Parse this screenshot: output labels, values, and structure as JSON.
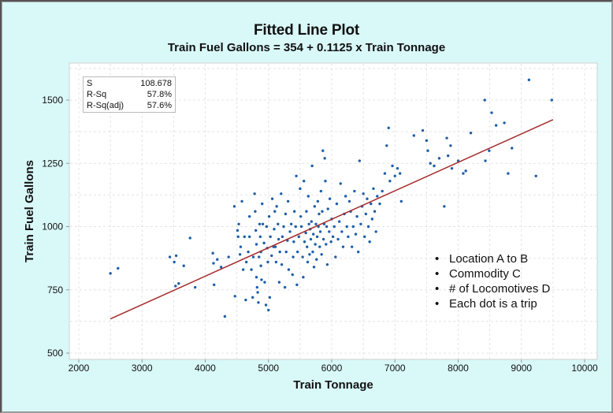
{
  "chart_data": {
    "type": "scatter",
    "title": "Fitted Line Plot",
    "subtitle": "Train Fuel Gallons = 354 + 0.1125 x Train Tonnage",
    "xlabel": "Train Tonnage",
    "ylabel": "Train Fuel Gallons",
    "xlim": [
      2000,
      10000
    ],
    "ylim": [
      500,
      1600
    ],
    "xticks": [
      2000,
      3000,
      4000,
      5000,
      6000,
      7000,
      8000,
      9000,
      10000
    ],
    "yticks": [
      500,
      750,
      1000,
      1250,
      1500
    ],
    "xtick_labels": [
      "2000",
      "3000",
      "4000",
      "5000",
      "6000",
      "7000",
      "8000",
      "9000",
      "10000"
    ],
    "ytick_labels": [
      "500",
      "750",
      "1000",
      "1250",
      "1500"
    ],
    "grid": true,
    "fit_line": {
      "intercept": 354,
      "slope": 0.1125,
      "x_range": [
        2500,
        9500
      ],
      "color": "#a52a2a"
    },
    "point_color": "#1f5fa8",
    "stats": [
      {
        "label": "S",
        "value": "108.678"
      },
      {
        "label": "R-Sq",
        "value": "57.8%"
      },
      {
        "label": "R-Sq(adj)",
        "value": "57.6%"
      }
    ],
    "points": [
      [
        2500,
        815
      ],
      [
        2620,
        835
      ],
      [
        3440,
        880
      ],
      [
        3510,
        860
      ],
      [
        3540,
        885
      ],
      [
        3530,
        765
      ],
      [
        3580,
        775
      ],
      [
        3660,
        845
      ],
      [
        3760,
        955
      ],
      [
        3840,
        760
      ],
      [
        4120,
        895
      ],
      [
        4130,
        855
      ],
      [
        4140,
        770
      ],
      [
        4190,
        870
      ],
      [
        4250,
        840
      ],
      [
        4310,
        645
      ],
      [
        4370,
        880
      ],
      [
        4460,
        1080
      ],
      [
        4470,
        725
      ],
      [
        4510,
        985
      ],
      [
        4520,
        960
      ],
      [
        4530,
        1010
      ],
      [
        4550,
        890
      ],
      [
        4560,
        920
      ],
      [
        4580,
        1100
      ],
      [
        4600,
        830
      ],
      [
        4620,
        960
      ],
      [
        4640,
        710
      ],
      [
        4650,
        860
      ],
      [
        4680,
        900
      ],
      [
        4700,
        1040
      ],
      [
        4700,
        960
      ],
      [
        4730,
        830
      ],
      [
        4750,
        720
      ],
      [
        4760,
        880
      ],
      [
        4780,
        1130
      ],
      [
        4790,
        1060
      ],
      [
        4800,
        985
      ],
      [
        4810,
        930
      ],
      [
        4810,
        800
      ],
      [
        4820,
        760
      ],
      [
        4830,
        740
      ],
      [
        4840,
        700
      ],
      [
        4850,
        880
      ],
      [
        4860,
        1010
      ],
      [
        4870,
        960
      ],
      [
        4880,
        900
      ],
      [
        4880,
        845
      ],
      [
        4890,
        790
      ],
      [
        4900,
        1090
      ],
      [
        4910,
        1010
      ],
      [
        4930,
        935
      ],
      [
        4940,
        780
      ],
      [
        4960,
        690
      ],
      [
        4970,
        1000
      ],
      [
        4980,
        915
      ],
      [
        4990,
        860
      ],
      [
        5000,
        670
      ],
      [
        5010,
        1040
      ],
      [
        5020,
        720
      ],
      [
        5030,
        960
      ],
      [
        5050,
        885
      ],
      [
        5060,
        1110
      ],
      [
        5080,
        920
      ],
      [
        5090,
        990
      ],
      [
        5100,
        1060
      ],
      [
        5110,
        920
      ],
      [
        5120,
        860
      ],
      [
        5130,
        1080
      ],
      [
        5150,
        1010
      ],
      [
        5160,
        950
      ],
      [
        5170,
        780
      ],
      [
        5180,
        900
      ],
      [
        5200,
        1130
      ],
      [
        5210,
        850
      ],
      [
        5220,
        960
      ],
      [
        5240,
        1000
      ],
      [
        5260,
        760
      ],
      [
        5270,
        1050
      ],
      [
        5280,
        900
      ],
      [
        5300,
        945
      ],
      [
        5310,
        1100
      ],
      [
        5320,
        830
      ],
      [
        5340,
        980
      ],
      [
        5360,
        1010
      ],
      [
        5380,
        810
      ],
      [
        5390,
        880
      ],
      [
        5400,
        940
      ],
      [
        5410,
        1060
      ],
      [
        5430,
        1000
      ],
      [
        5440,
        1200
      ],
      [
        5450,
        770
      ],
      [
        5460,
        900
      ],
      [
        5480,
        960
      ],
      [
        5500,
        1150
      ],
      [
        5510,
        1040
      ],
      [
        5520,
        1000
      ],
      [
        5540,
        880
      ],
      [
        5550,
        800
      ],
      [
        5560,
        1180
      ],
      [
        5570,
        940
      ],
      [
        5590,
        975
      ],
      [
        5600,
        1060
      ],
      [
        5610,
        920
      ],
      [
        5620,
        860
      ],
      [
        5630,
        1120
      ],
      [
        5640,
        1010
      ],
      [
        5650,
        890
      ],
      [
        5660,
        990
      ],
      [
        5670,
        950
      ],
      [
        5680,
        1020
      ],
      [
        5690,
        1240
      ],
      [
        5700,
        900
      ],
      [
        5710,
        970
      ],
      [
        5720,
        840
      ],
      [
        5730,
        1080
      ],
      [
        5740,
        930
      ],
      [
        5750,
        1010
      ],
      [
        5760,
        870
      ],
      [
        5770,
        960
      ],
      [
        5780,
        1100
      ],
      [
        5790,
        1000
      ],
      [
        5800,
        1050
      ],
      [
        5810,
        920
      ],
      [
        5820,
        980
      ],
      [
        5830,
        1140
      ],
      [
        5840,
        890
      ],
      [
        5850,
        1060
      ],
      [
        5860,
        1300
      ],
      [
        5870,
        950
      ],
      [
        5880,
        1010
      ],
      [
        5890,
        1270
      ],
      [
        5900,
        1180
      ],
      [
        5910,
        930
      ],
      [
        5920,
        1000
      ],
      [
        5930,
        850
      ],
      [
        5940,
        1070
      ],
      [
        5960,
        980
      ],
      [
        5970,
        1110
      ],
      [
        5990,
        940
      ],
      [
        6000,
        1030
      ],
      [
        6020,
        960
      ],
      [
        6040,
        1000
      ],
      [
        6060,
        880
      ],
      [
        6080,
        1090
      ],
      [
        6100,
        950
      ],
      [
        6120,
        1020
      ],
      [
        6140,
        1170
      ],
      [
        6160,
        980
      ],
      [
        6180,
        920
      ],
      [
        6200,
        1050
      ],
      [
        6220,
        1120
      ],
      [
        6240,
        1000
      ],
      [
        6260,
        960
      ],
      [
        6280,
        1100
      ],
      [
        6300,
        1060
      ],
      [
        6320,
        920
      ],
      [
        6340,
        1000
      ],
      [
        6360,
        1140
      ],
      [
        6380,
        970
      ],
      [
        6400,
        1040
      ],
      [
        6420,
        900
      ],
      [
        6440,
        1260
      ],
      [
        6460,
        1010
      ],
      [
        6480,
        1080
      ],
      [
        6500,
        1130
      ],
      [
        6520,
        960
      ],
      [
        6540,
        1050
      ],
      [
        6560,
        1110
      ],
      [
        6580,
        1000
      ],
      [
        6600,
        940
      ],
      [
        6620,
        1090
      ],
      [
        6640,
        1030
      ],
      [
        6660,
        1150
      ],
      [
        6680,
        1060
      ],
      [
        6700,
        980
      ],
      [
        6720,
        1120
      ],
      [
        6760,
        1090
      ],
      [
        6800,
        1140
      ],
      [
        6840,
        1210
      ],
      [
        6870,
        1320
      ],
      [
        6900,
        1390
      ],
      [
        6920,
        1180
      ],
      [
        6960,
        1240
      ],
      [
        7000,
        1200
      ],
      [
        7040,
        1230
      ],
      [
        7080,
        1210
      ],
      [
        7100,
        1100
      ],
      [
        7300,
        1360
      ],
      [
        7440,
        1380
      ],
      [
        7500,
        1340
      ],
      [
        7520,
        1300
      ],
      [
        7560,
        1250
      ],
      [
        7620,
        1240
      ],
      [
        7700,
        1270
      ],
      [
        7780,
        1080
      ],
      [
        7820,
        1350
      ],
      [
        7840,
        1280
      ],
      [
        7880,
        1320
      ],
      [
        7900,
        1230
      ],
      [
        8000,
        1260
      ],
      [
        8080,
        1210
      ],
      [
        8120,
        1220
      ],
      [
        8200,
        1370
      ],
      [
        8420,
        1500
      ],
      [
        8430,
        1260
      ],
      [
        8490,
        1300
      ],
      [
        8530,
        1450
      ],
      [
        8600,
        1400
      ],
      [
        8730,
        1410
      ],
      [
        8790,
        1210
      ],
      [
        8850,
        1310
      ],
      [
        9120,
        1580
      ],
      [
        9230,
        1200
      ],
      [
        9480,
        1500
      ]
    ]
  },
  "annotation": {
    "bullets": [
      "Location A to B",
      "Commodity C",
      "# of Locomotives D",
      "Each dot is a trip"
    ]
  }
}
